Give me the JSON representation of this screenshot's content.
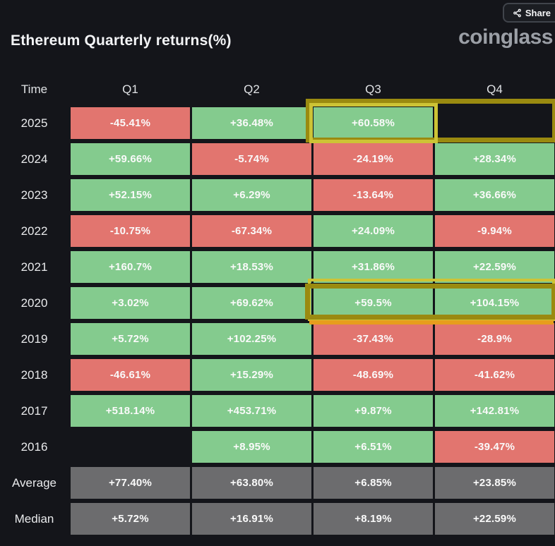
{
  "header": {
    "title": "Ethereum Quarterly returns(%)",
    "share_label": "Share",
    "share_icon": "share-nodes-icon",
    "logo": "coinglass"
  },
  "colors": {
    "background": "#14151a",
    "positive": "#84cb8e",
    "negative": "#e2756f",
    "summary": "#6c6c6e",
    "highlight_olive": "#9a8a10",
    "highlight_yellow": "#cdc335",
    "highlight_orange": "#e79d1d",
    "text": "#fafafa",
    "logo_gray": "#9b9fa6"
  },
  "table": {
    "columns": [
      "Time",
      "Q1",
      "Q2",
      "Q3",
      "Q4"
    ],
    "rows": [
      {
        "label": "2025",
        "cells": [
          {
            "text": "-45.41%",
            "type": "red"
          },
          {
            "text": "+36.48%",
            "type": "green"
          },
          {
            "text": "+60.58%",
            "type": "green"
          },
          {
            "text": "",
            "type": "empty"
          }
        ]
      },
      {
        "label": "2024",
        "cells": [
          {
            "text": "+59.66%",
            "type": "green"
          },
          {
            "text": "-5.74%",
            "type": "red"
          },
          {
            "text": "-24.19%",
            "type": "red"
          },
          {
            "text": "+28.34%",
            "type": "green"
          }
        ]
      },
      {
        "label": "2023",
        "cells": [
          {
            "text": "+52.15%",
            "type": "green"
          },
          {
            "text": "+6.29%",
            "type": "green"
          },
          {
            "text": "-13.64%",
            "type": "red"
          },
          {
            "text": "+36.66%",
            "type": "green"
          }
        ]
      },
      {
        "label": "2022",
        "cells": [
          {
            "text": "-10.75%",
            "type": "red"
          },
          {
            "text": "-67.34%",
            "type": "red"
          },
          {
            "text": "+24.09%",
            "type": "green"
          },
          {
            "text": "-9.94%",
            "type": "red"
          }
        ]
      },
      {
        "label": "2021",
        "cells": [
          {
            "text": "+160.7%",
            "type": "green"
          },
          {
            "text": "+18.53%",
            "type": "green"
          },
          {
            "text": "+31.86%",
            "type": "green"
          },
          {
            "text": "+22.59%",
            "type": "green"
          }
        ]
      },
      {
        "label": "2020",
        "cells": [
          {
            "text": "+3.02%",
            "type": "green"
          },
          {
            "text": "+69.62%",
            "type": "green"
          },
          {
            "text": "+59.5%",
            "type": "green"
          },
          {
            "text": "+104.15%",
            "type": "green"
          }
        ]
      },
      {
        "label": "2019",
        "cells": [
          {
            "text": "+5.72%",
            "type": "green"
          },
          {
            "text": "+102.25%",
            "type": "green"
          },
          {
            "text": "-37.43%",
            "type": "red"
          },
          {
            "text": "-28.9%",
            "type": "red"
          }
        ]
      },
      {
        "label": "2018",
        "cells": [
          {
            "text": "-46.61%",
            "type": "red"
          },
          {
            "text": "+15.29%",
            "type": "green"
          },
          {
            "text": "-48.69%",
            "type": "red"
          },
          {
            "text": "-41.62%",
            "type": "red"
          }
        ]
      },
      {
        "label": "2017",
        "cells": [
          {
            "text": "+518.14%",
            "type": "green"
          },
          {
            "text": "+453.71%",
            "type": "green"
          },
          {
            "text": "+9.87%",
            "type": "green"
          },
          {
            "text": "+142.81%",
            "type": "green"
          }
        ]
      },
      {
        "label": "2016",
        "cells": [
          {
            "text": "",
            "type": "empty"
          },
          {
            "text": "+8.95%",
            "type": "green"
          },
          {
            "text": "+6.51%",
            "type": "green"
          },
          {
            "text": "-39.47%",
            "type": "red"
          }
        ]
      },
      {
        "label": "Average",
        "cells": [
          {
            "text": "+77.40%",
            "type": "gray"
          },
          {
            "text": "+63.80%",
            "type": "gray"
          },
          {
            "text": "+6.85%",
            "type": "gray"
          },
          {
            "text": "+23.85%",
            "type": "gray"
          }
        ]
      },
      {
        "label": "Median",
        "cells": [
          {
            "text": "+5.72%",
            "type": "gray"
          },
          {
            "text": "+16.91%",
            "type": "gray"
          },
          {
            "text": "+8.19%",
            "type": "gray"
          },
          {
            "text": "+22.59%",
            "type": "gray"
          }
        ]
      }
    ]
  },
  "annotations": [
    {
      "name": "highlight-2025-q3-q4",
      "rows": [
        "2025"
      ],
      "columns": [
        "Q3",
        "Q4"
      ],
      "style": "yellow-box"
    },
    {
      "name": "highlight-2020-q3-q4",
      "rows": [
        "2020"
      ],
      "columns": [
        "Q3",
        "Q4"
      ],
      "style": "yellow-box"
    }
  ],
  "chart_data": {
    "type": "heatmap",
    "title": "Ethereum Quarterly returns(%)",
    "columns": [
      "Q1",
      "Q2",
      "Q3",
      "Q4"
    ],
    "rows": [
      "2025",
      "2024",
      "2023",
      "2022",
      "2021",
      "2020",
      "2019",
      "2018",
      "2017",
      "2016",
      "Average",
      "Median"
    ],
    "values": [
      [
        -45.41,
        36.48,
        60.58,
        null
      ],
      [
        59.66,
        -5.74,
        -24.19,
        28.34
      ],
      [
        52.15,
        6.29,
        -13.64,
        36.66
      ],
      [
        -10.75,
        -67.34,
        24.09,
        -9.94
      ],
      [
        160.7,
        18.53,
        31.86,
        22.59
      ],
      [
        3.02,
        69.62,
        59.5,
        104.15
      ],
      [
        5.72,
        102.25,
        -37.43,
        -28.9
      ],
      [
        -46.61,
        15.29,
        -48.69,
        -41.62
      ],
      [
        518.14,
        453.71,
        9.87,
        142.81
      ],
      [
        null,
        8.95,
        6.51,
        -39.47
      ],
      [
        77.4,
        63.8,
        6.85,
        23.85
      ],
      [
        5.72,
        16.91,
        8.19,
        22.59
      ]
    ],
    "legend": "green = positive return, red = negative return, gray = summary rows",
    "units": "percent"
  }
}
